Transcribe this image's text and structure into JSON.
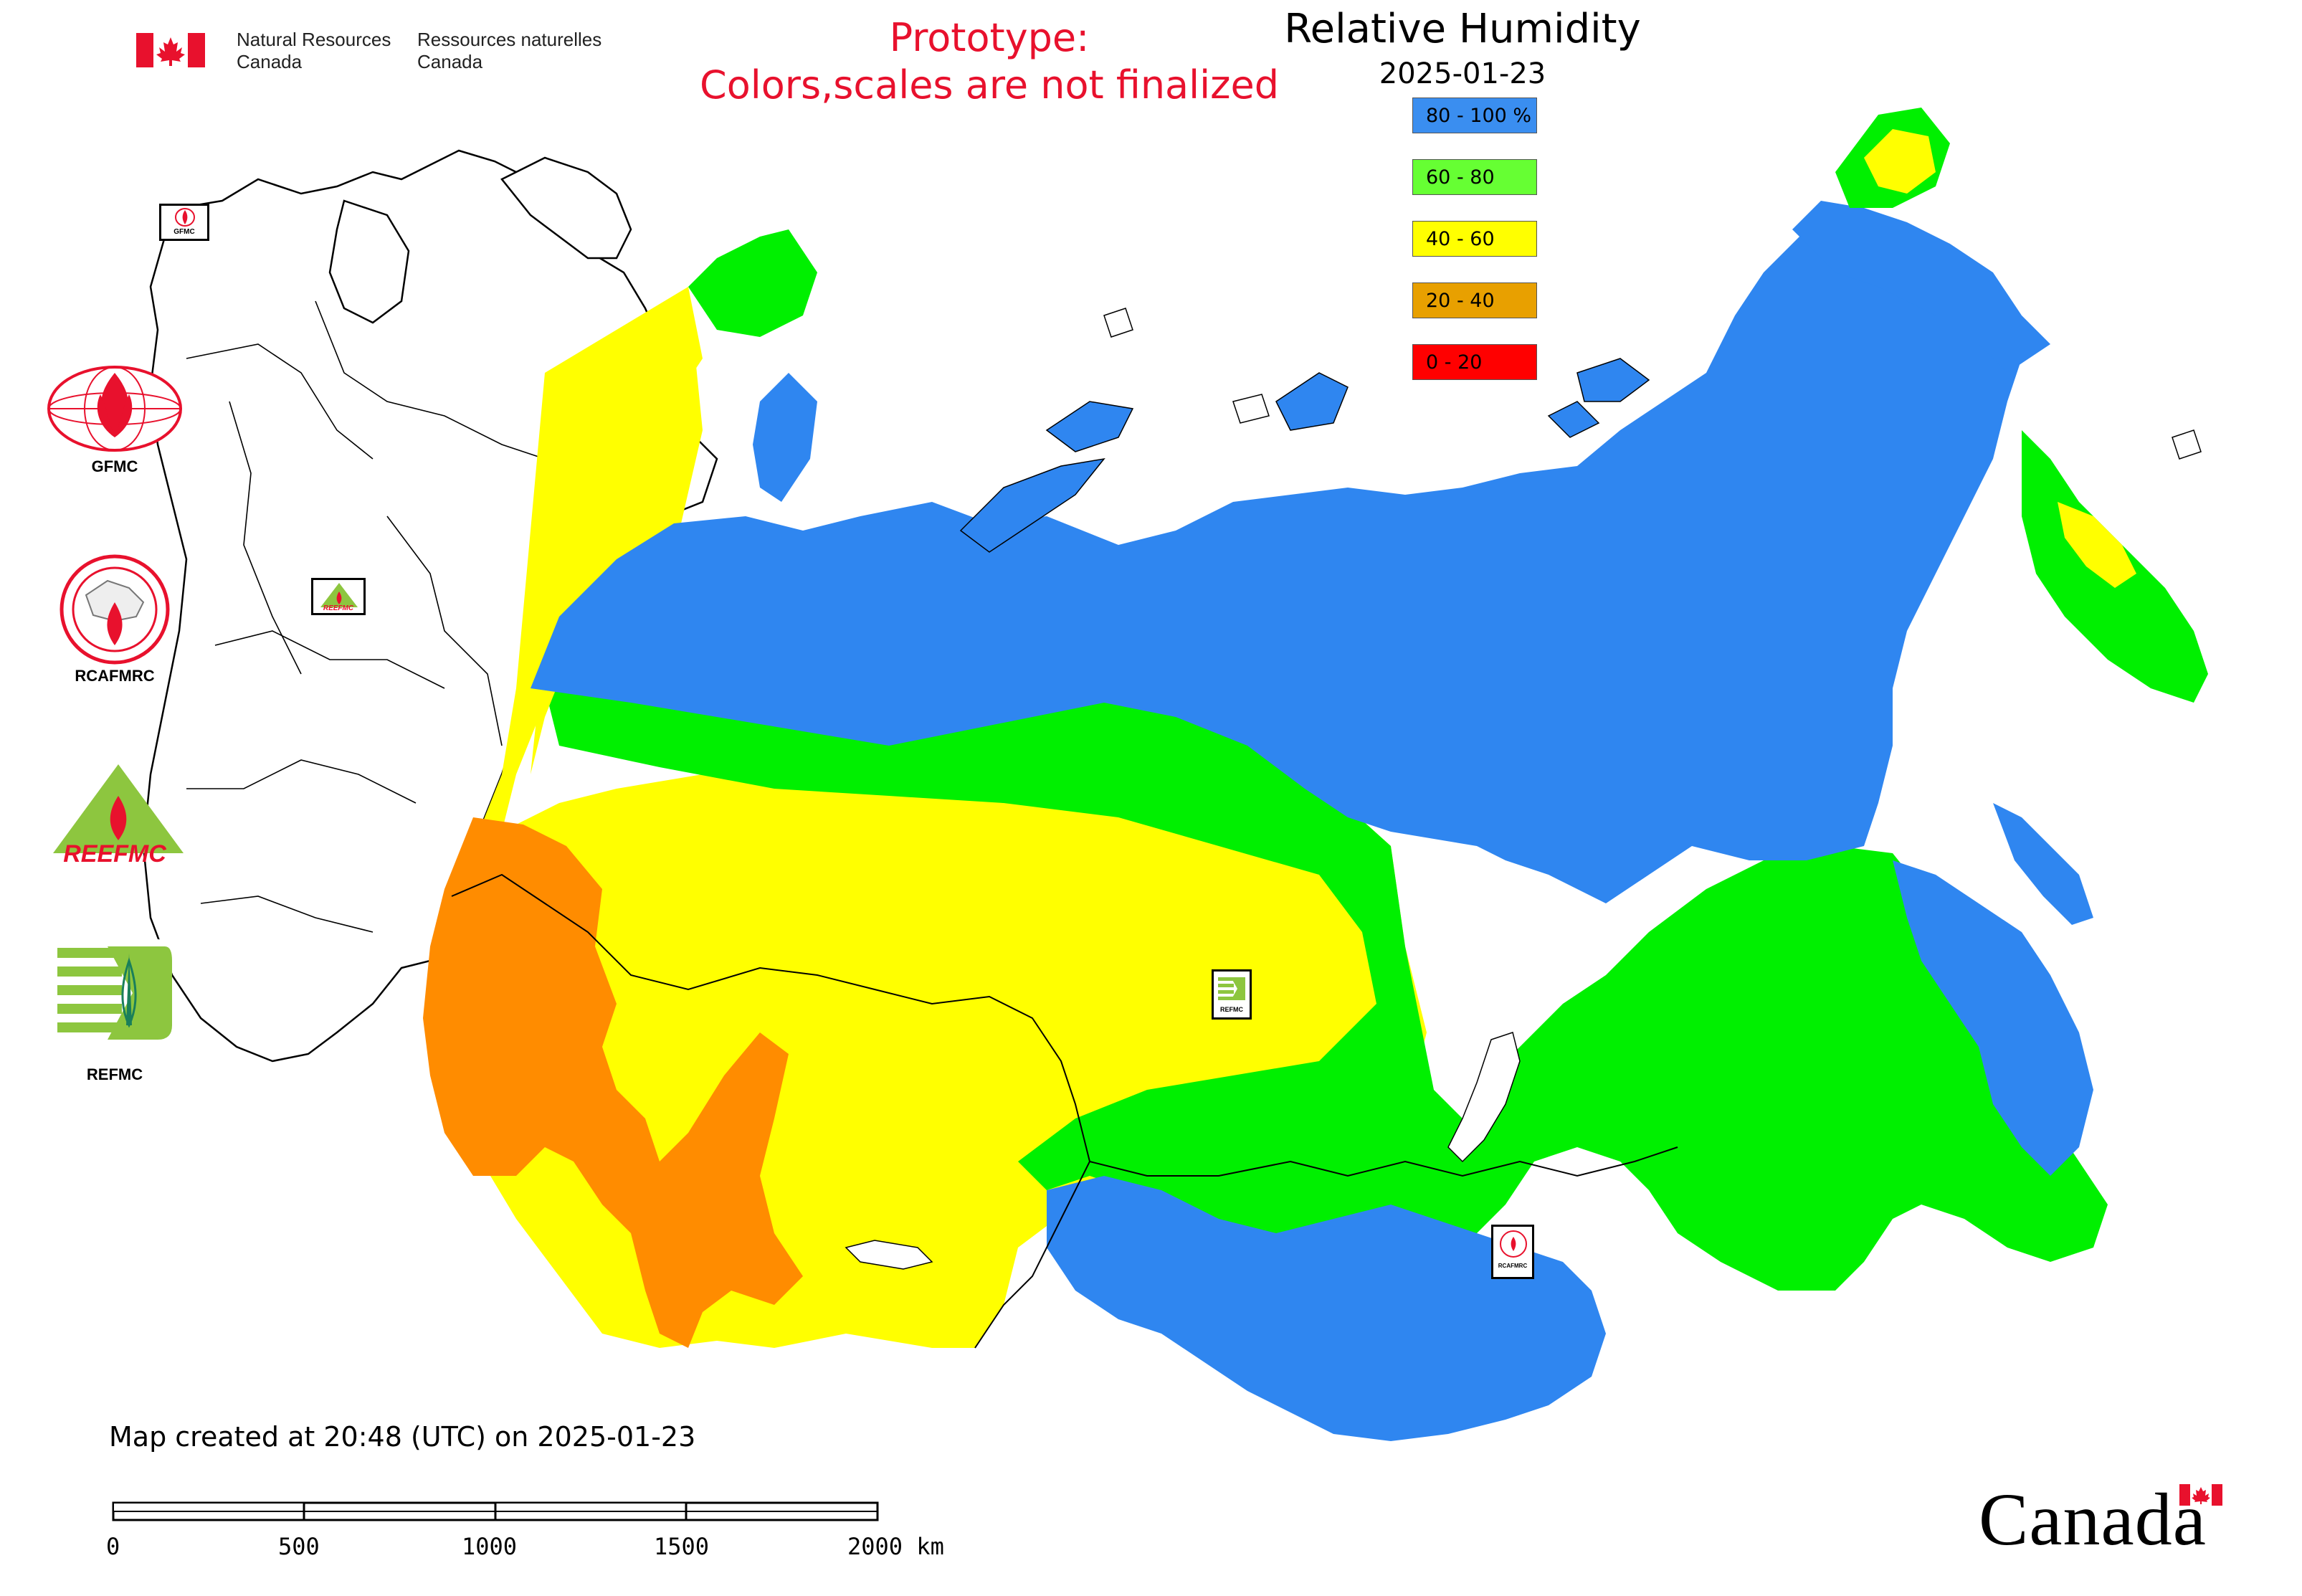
{
  "header": {
    "org_en_line1": "Natural Resources",
    "org_en_line2": "Canada",
    "org_fr_line1": "Ressources naturelles",
    "org_fr_line2": "Canada",
    "prototype_line1": "Prototype:",
    "prototype_line2": "Colors,scales are not finalized"
  },
  "map": {
    "title": "Relative Humidity",
    "date": "2025-01-23",
    "legend": [
      {
        "label": "80 - 100 %",
        "color": "#3a8ef0"
      },
      {
        "label": "60 - 80",
        "color": "#66ff33"
      },
      {
        "label": "40 - 60",
        "color": "#ffff00"
      },
      {
        "label": "20 - 40",
        "color": "#e8a000"
      },
      {
        "label": "0 - 20",
        "color": "#ff0000"
      }
    ],
    "region_colors": {
      "blue": "#2f86f0",
      "green": "#00f000",
      "yellow": "#ffff00",
      "orange": "#ff8c00"
    }
  },
  "side_logos": [
    {
      "label": "GFMC"
    },
    {
      "label": "RCAFMRC"
    },
    {
      "label": "REEFMC",
      "art_text": "REEFMC"
    },
    {
      "label": "REFMC"
    }
  ],
  "map_markers": [
    {
      "label": "GFMC"
    },
    {
      "label": "REEFMC"
    },
    {
      "label": "REFMC"
    },
    {
      "label": "RCAFMRC"
    }
  ],
  "footer": {
    "created": "Map created at 20:48 (UTC) on 2025-01-23",
    "scale_ticks": [
      "0",
      "500",
      "1000",
      "1500",
      "2000 km"
    ],
    "wordmark": "Canada"
  }
}
